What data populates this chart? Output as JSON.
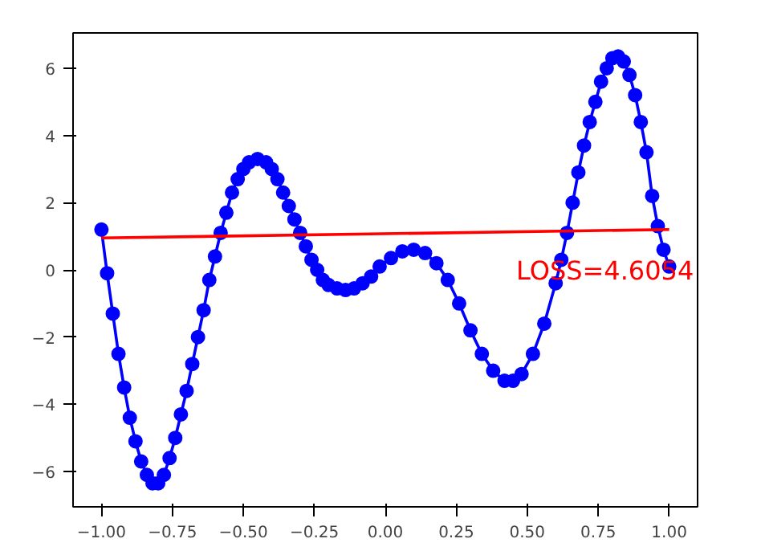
{
  "chart_data": {
    "type": "line",
    "marker": "circle",
    "grid": false,
    "xlim": [
      -1.1,
      1.1
    ],
    "ylim": [
      -7.05,
      7.05
    ],
    "xticks": [
      {
        "value": -1,
        "label": "−1.00"
      },
      {
        "value": -0.75,
        "label": "−0.75"
      },
      {
        "value": -0.5,
        "label": "−0.50"
      },
      {
        "value": -0.25,
        "label": "−0.25"
      },
      {
        "value": 0,
        "label": "0.00"
      },
      {
        "value": 0.25,
        "label": "0.25"
      },
      {
        "value": 0.5,
        "label": "0.50"
      },
      {
        "value": 0.75,
        "label": "0.75"
      },
      {
        "value": 1,
        "label": "1.00"
      }
    ],
    "yticks": [
      {
        "value": -6,
        "label": "−6"
      },
      {
        "value": -4,
        "label": "−4"
      },
      {
        "value": -2,
        "label": "−2"
      },
      0,
      2,
      4,
      6
    ],
    "series": [
      {
        "color": "#0000ff",
        "x": [
          -1.0,
          -0.98,
          -0.96,
          -0.94,
          -0.92,
          -0.9,
          -0.88,
          -0.86,
          -0.84,
          -0.82,
          -0.8,
          -0.78,
          -0.76,
          -0.74,
          -0.72,
          -0.7,
          -0.68,
          -0.66,
          -0.64,
          -0.62,
          -0.6,
          -0.58,
          -0.56,
          -0.54,
          -0.52,
          -0.5,
          -0.48,
          -0.45,
          -0.42,
          -0.4,
          -0.38,
          -0.36,
          -0.34,
          -0.32,
          -0.3,
          -0.28,
          -0.26,
          -0.24,
          -0.22,
          -0.2,
          -0.17,
          -0.14,
          -0.11,
          -0.08,
          -0.05,
          -0.02,
          0.02,
          0.06,
          0.1,
          0.14,
          0.18,
          0.22,
          0.26,
          0.3,
          0.34,
          0.38,
          0.42,
          0.45,
          0.48,
          0.52,
          0.56,
          0.6,
          0.62,
          0.64,
          0.66,
          0.68,
          0.7,
          0.72,
          0.74,
          0.76,
          0.78,
          0.8,
          0.82,
          0.84,
          0.86,
          0.88,
          0.9,
          0.92,
          0.94,
          0.96,
          0.98,
          1.0
        ],
        "values": [
          1.2,
          -0.1,
          -1.3,
          -2.5,
          -3.5,
          -4.4,
          -5.1,
          -5.7,
          -6.1,
          -6.35,
          -6.35,
          -6.1,
          -5.6,
          -5.0,
          -4.3,
          -3.6,
          -2.8,
          -2.0,
          -1.2,
          -0.3,
          0.4,
          1.1,
          1.7,
          2.3,
          2.7,
          3.0,
          3.2,
          3.3,
          3.2,
          3.0,
          2.7,
          2.3,
          1.9,
          1.5,
          1.1,
          0.7,
          0.3,
          0.0,
          -0.3,
          -0.45,
          -0.55,
          -0.6,
          -0.55,
          -0.4,
          -0.2,
          0.1,
          0.35,
          0.55,
          0.6,
          0.5,
          0.2,
          -0.3,
          -1.0,
          -1.8,
          -2.5,
          -3.0,
          -3.3,
          -3.3,
          -3.1,
          -2.5,
          -1.6,
          -0.4,
          0.3,
          1.1,
          2.0,
          2.9,
          3.7,
          4.4,
          5.0,
          5.6,
          6.0,
          6.3,
          6.35,
          6.2,
          5.8,
          5.2,
          4.4,
          3.5,
          2.2,
          1.3,
          0.6,
          0.1
        ]
      },
      {
        "color": "#ff0000",
        "marker": "none",
        "x": [
          -1.0,
          1.0
        ],
        "values": [
          0.95,
          1.2
        ]
      }
    ],
    "annotations": [
      "LOSS=4.6054"
    ]
  }
}
